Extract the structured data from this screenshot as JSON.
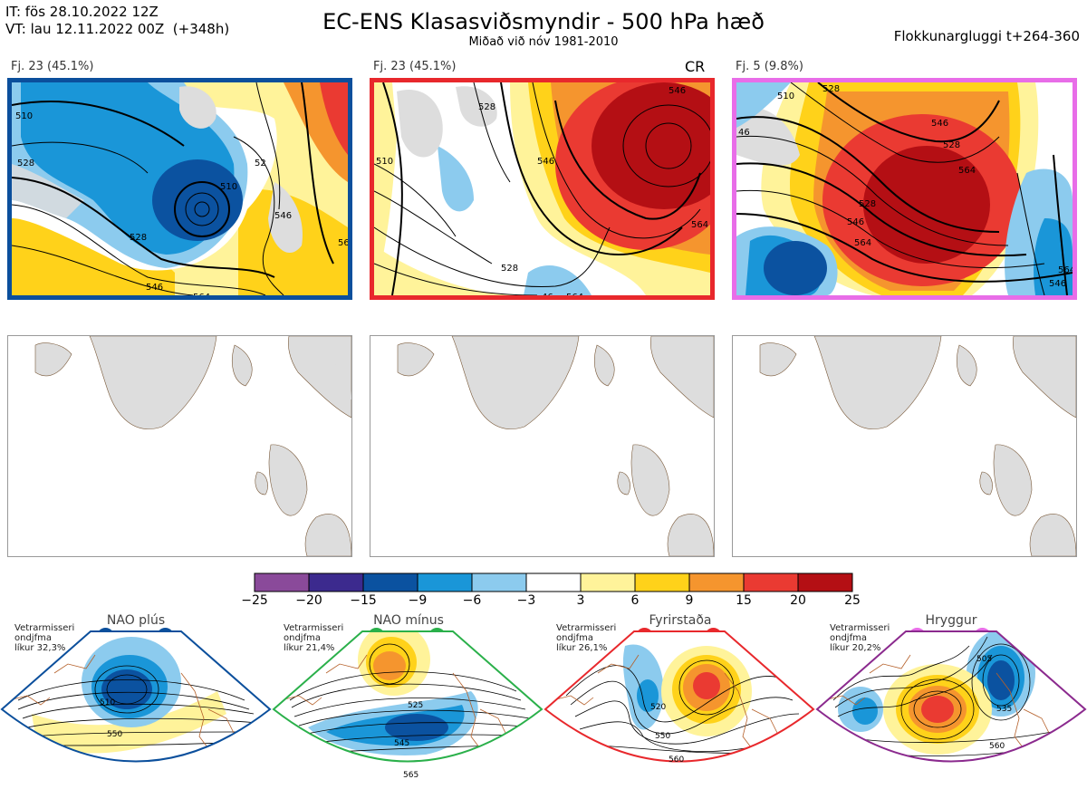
{
  "header": {
    "it_line": "IT: fös 28.10.2022 12Z",
    "vt_line": "VT: lau 12.11.2022 00Z  (+348h)",
    "title": "EC-ENS Klasasviðsmyndir - 500 hPa hæð",
    "subtitle": "Miðað við nóv 1981-2010",
    "window": "Flokkunargluggi t+264-360"
  },
  "panels": [
    {
      "label": "Fj. 23 (45.1%)",
      "border_color": "#0b4f9c",
      "contours": [
        "510",
        "528",
        "528",
        "546",
        "564",
        "56",
        "52",
        "546",
        "510"
      ]
    },
    {
      "label": "Fj. 23 (45.1%)",
      "border_color": "#e8282c",
      "tag": "CR",
      "contours": [
        "528",
        "510",
        "546",
        "564",
        "528",
        "46",
        "564",
        "546"
      ]
    },
    {
      "label": "Fj. 5 (9.8%)",
      "border_color": "#e86de8",
      "contours": [
        "510",
        "528",
        "46",
        "528",
        "546",
        "564",
        "546",
        "528",
        "564",
        "546",
        "564"
      ]
    }
  ],
  "colorbar": {
    "ticks": [
      "−25",
      "−20",
      "−15",
      "−9",
      "−6",
      "−3",
      "3",
      "6",
      "9",
      "15",
      "20",
      "25"
    ],
    "colors": [
      "#8a4a9a",
      "#3c2a8e",
      "#0b52a0",
      "#1a96d8",
      "#8ccbee",
      "#ffffff",
      "#fff39a",
      "#ffd21a",
      "#f5952e",
      "#ea3a32",
      "#b40f14"
    ]
  },
  "regimes": [
    {
      "title": "NAO plús",
      "note": [
        "Vetrarmisseri",
        "ondjfma",
        "líkur 32,3%"
      ],
      "color": "#0b4f9c",
      "labels": [
        "510",
        "550"
      ]
    },
    {
      "title": "NAO mínus",
      "note": [
        "Vetrarmisseri",
        "ondjfma",
        "líkur 21,4%"
      ],
      "color": "#2ab04a",
      "labels": [
        "525",
        "545",
        "565"
      ]
    },
    {
      "title": "Fyrirstaða",
      "note": [
        "Vetrarmisseri",
        "ondjfma",
        "líkur 26,1%"
      ],
      "color": "#e8282c",
      "labels": [
        "520",
        "550",
        "560"
      ]
    },
    {
      "title": "Hryggur",
      "note": [
        "Vetrarmisseri",
        "ondjfma",
        "líkur 20,2%"
      ],
      "color": "#e86de8",
      "labels": [
        "505",
        "535",
        "560"
      ]
    }
  ]
}
